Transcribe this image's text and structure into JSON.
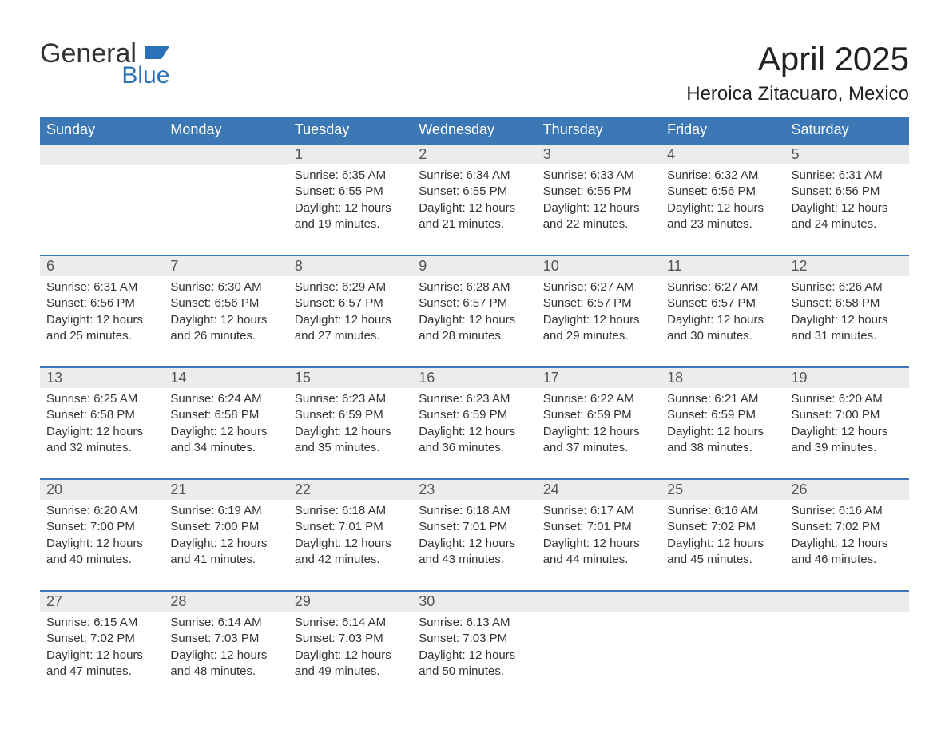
{
  "logo": {
    "text1": "General",
    "text2": "Blue"
  },
  "title": "April 2025",
  "location": "Heroica Zitacuaro, Mexico",
  "colors": {
    "header_bg": "#3b78b5",
    "header_text": "#ffffff",
    "daybar_bg": "#ececec",
    "daybar_text": "#555555",
    "body_text": "#333333",
    "week_border": "#3b78b5",
    "logo_blue": "#2a71b8",
    "background": "#ffffff"
  },
  "typography": {
    "title_fontsize": 42,
    "location_fontsize": 24,
    "weekday_fontsize": 18,
    "daynum_fontsize": 18,
    "body_fontsize": 15,
    "font_family": "Arial"
  },
  "weekdays": [
    "Sunday",
    "Monday",
    "Tuesday",
    "Wednesday",
    "Thursday",
    "Friday",
    "Saturday"
  ],
  "weeks": [
    [
      {
        "blank": true
      },
      {
        "blank": true
      },
      {
        "day": "1",
        "sunrise": "Sunrise: 6:35 AM",
        "sunset": "Sunset: 6:55 PM",
        "daylight": "Daylight: 12 hours and 19 minutes."
      },
      {
        "day": "2",
        "sunrise": "Sunrise: 6:34 AM",
        "sunset": "Sunset: 6:55 PM",
        "daylight": "Daylight: 12 hours and 21 minutes."
      },
      {
        "day": "3",
        "sunrise": "Sunrise: 6:33 AM",
        "sunset": "Sunset: 6:55 PM",
        "daylight": "Daylight: 12 hours and 22 minutes."
      },
      {
        "day": "4",
        "sunrise": "Sunrise: 6:32 AM",
        "sunset": "Sunset: 6:56 PM",
        "daylight": "Daylight: 12 hours and 23 minutes."
      },
      {
        "day": "5",
        "sunrise": "Sunrise: 6:31 AM",
        "sunset": "Sunset: 6:56 PM",
        "daylight": "Daylight: 12 hours and 24 minutes."
      }
    ],
    [
      {
        "day": "6",
        "sunrise": "Sunrise: 6:31 AM",
        "sunset": "Sunset: 6:56 PM",
        "daylight": "Daylight: 12 hours and 25 minutes."
      },
      {
        "day": "7",
        "sunrise": "Sunrise: 6:30 AM",
        "sunset": "Sunset: 6:56 PM",
        "daylight": "Daylight: 12 hours and 26 minutes."
      },
      {
        "day": "8",
        "sunrise": "Sunrise: 6:29 AM",
        "sunset": "Sunset: 6:57 PM",
        "daylight": "Daylight: 12 hours and 27 minutes."
      },
      {
        "day": "9",
        "sunrise": "Sunrise: 6:28 AM",
        "sunset": "Sunset: 6:57 PM",
        "daylight": "Daylight: 12 hours and 28 minutes."
      },
      {
        "day": "10",
        "sunrise": "Sunrise: 6:27 AM",
        "sunset": "Sunset: 6:57 PM",
        "daylight": "Daylight: 12 hours and 29 minutes."
      },
      {
        "day": "11",
        "sunrise": "Sunrise: 6:27 AM",
        "sunset": "Sunset: 6:57 PM",
        "daylight": "Daylight: 12 hours and 30 minutes."
      },
      {
        "day": "12",
        "sunrise": "Sunrise: 6:26 AM",
        "sunset": "Sunset: 6:58 PM",
        "daylight": "Daylight: 12 hours and 31 minutes."
      }
    ],
    [
      {
        "day": "13",
        "sunrise": "Sunrise: 6:25 AM",
        "sunset": "Sunset: 6:58 PM",
        "daylight": "Daylight: 12 hours and 32 minutes."
      },
      {
        "day": "14",
        "sunrise": "Sunrise: 6:24 AM",
        "sunset": "Sunset: 6:58 PM",
        "daylight": "Daylight: 12 hours and 34 minutes."
      },
      {
        "day": "15",
        "sunrise": "Sunrise: 6:23 AM",
        "sunset": "Sunset: 6:59 PM",
        "daylight": "Daylight: 12 hours and 35 minutes."
      },
      {
        "day": "16",
        "sunrise": "Sunrise: 6:23 AM",
        "sunset": "Sunset: 6:59 PM",
        "daylight": "Daylight: 12 hours and 36 minutes."
      },
      {
        "day": "17",
        "sunrise": "Sunrise: 6:22 AM",
        "sunset": "Sunset: 6:59 PM",
        "daylight": "Daylight: 12 hours and 37 minutes."
      },
      {
        "day": "18",
        "sunrise": "Sunrise: 6:21 AM",
        "sunset": "Sunset: 6:59 PM",
        "daylight": "Daylight: 12 hours and 38 minutes."
      },
      {
        "day": "19",
        "sunrise": "Sunrise: 6:20 AM",
        "sunset": "Sunset: 7:00 PM",
        "daylight": "Daylight: 12 hours and 39 minutes."
      }
    ],
    [
      {
        "day": "20",
        "sunrise": "Sunrise: 6:20 AM",
        "sunset": "Sunset: 7:00 PM",
        "daylight": "Daylight: 12 hours and 40 minutes."
      },
      {
        "day": "21",
        "sunrise": "Sunrise: 6:19 AM",
        "sunset": "Sunset: 7:00 PM",
        "daylight": "Daylight: 12 hours and 41 minutes."
      },
      {
        "day": "22",
        "sunrise": "Sunrise: 6:18 AM",
        "sunset": "Sunset: 7:01 PM",
        "daylight": "Daylight: 12 hours and 42 minutes."
      },
      {
        "day": "23",
        "sunrise": "Sunrise: 6:18 AM",
        "sunset": "Sunset: 7:01 PM",
        "daylight": "Daylight: 12 hours and 43 minutes."
      },
      {
        "day": "24",
        "sunrise": "Sunrise: 6:17 AM",
        "sunset": "Sunset: 7:01 PM",
        "daylight": "Daylight: 12 hours and 44 minutes."
      },
      {
        "day": "25",
        "sunrise": "Sunrise: 6:16 AM",
        "sunset": "Sunset: 7:02 PM",
        "daylight": "Daylight: 12 hours and 45 minutes."
      },
      {
        "day": "26",
        "sunrise": "Sunrise: 6:16 AM",
        "sunset": "Sunset: 7:02 PM",
        "daylight": "Daylight: 12 hours and 46 minutes."
      }
    ],
    [
      {
        "day": "27",
        "sunrise": "Sunrise: 6:15 AM",
        "sunset": "Sunset: 7:02 PM",
        "daylight": "Daylight: 12 hours and 47 minutes."
      },
      {
        "day": "28",
        "sunrise": "Sunrise: 6:14 AM",
        "sunset": "Sunset: 7:03 PM",
        "daylight": "Daylight: 12 hours and 48 minutes."
      },
      {
        "day": "29",
        "sunrise": "Sunrise: 6:14 AM",
        "sunset": "Sunset: 7:03 PM",
        "daylight": "Daylight: 12 hours and 49 minutes."
      },
      {
        "day": "30",
        "sunrise": "Sunrise: 6:13 AM",
        "sunset": "Sunset: 7:03 PM",
        "daylight": "Daylight: 12 hours and 50 minutes."
      },
      {
        "blank": true
      },
      {
        "blank": true
      },
      {
        "blank": true
      }
    ]
  ]
}
